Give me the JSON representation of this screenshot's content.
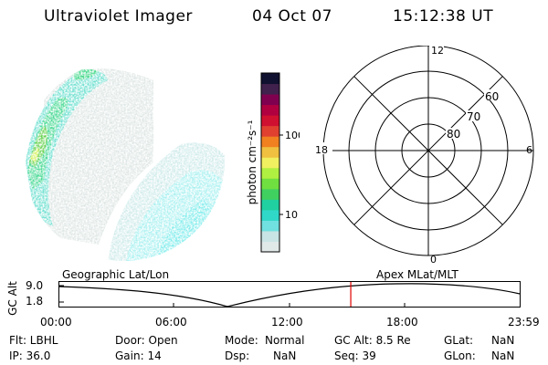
{
  "header": {
    "title": "Ultraviolet Imager",
    "date": "04 Oct 07",
    "time": "15:12:38 UT"
  },
  "colorbar": {
    "unit_label": "photon cm⁻²s⁻¹",
    "ticks": [
      {
        "label": "100",
        "value": 100
      },
      {
        "label": "10",
        "value": 10
      }
    ],
    "colors": [
      "#e0e8e8",
      "#c8e4e4",
      "#70e0e0",
      "#30d8c8",
      "#20d0a0",
      "#40d060",
      "#70e040",
      "#b0f040",
      "#f0f060",
      "#f0c040",
      "#f08020",
      "#e04030",
      "#d01030",
      "#b00040",
      "#800050",
      "#40204c",
      "#101030"
    ]
  },
  "polar_plot": {
    "mlt_labels": {
      "top": "12",
      "left": "18",
      "right": "6",
      "bottom": "0"
    },
    "lat_labels": [
      "80",
      "70",
      "60"
    ]
  },
  "timeline": {
    "left_label": "Geographic Lat/Lon",
    "right_label": "Apex MLat/MLT",
    "y_axis_label": "GC Alt",
    "y_ticks": [
      "9.0",
      "1.8"
    ],
    "x_ticks": [
      "00:00",
      "06:00",
      "12:00",
      "18:00",
      "23:59"
    ],
    "marker_time": "15:12",
    "marker_color": "#e00000"
  },
  "info": {
    "flt": "Flt: LBHL",
    "ip": "IP: 36.0",
    "door": "Door: Open",
    "gain": "Gain: 14",
    "mode_label": "Mode:",
    "mode_value": "Normal",
    "dsp_label": "Dsp:",
    "dsp_value": "NaN",
    "gcalt": "GC Alt: 8.5 Re",
    "seq": "Seq: 39",
    "glat_label": "GLat:",
    "glat_value": "NaN",
    "glon_label": "GLon:",
    "glon_value": "NaN"
  }
}
